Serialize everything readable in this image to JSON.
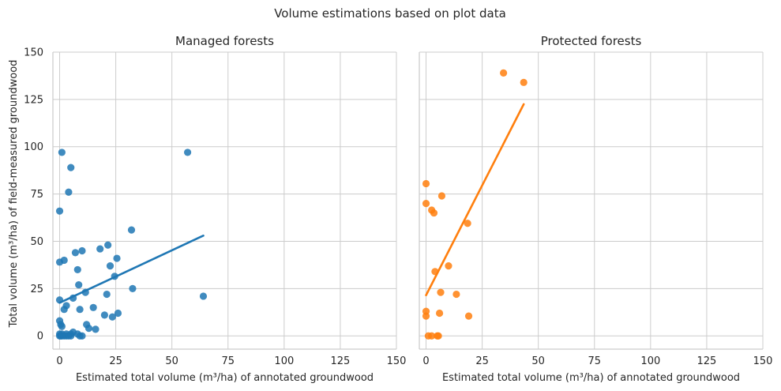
{
  "suptitle": "Volume estimations based on plot data",
  "ylabel": "Total volume (m³/ha) of field-measured groundwood",
  "chart_data": [
    {
      "type": "scatter",
      "title": "Managed forests",
      "xlabel": "Estimated total volume (m³/ha) of annotated groundwood",
      "xlim": [
        -3,
        150
      ],
      "ylim": [
        -7,
        150
      ],
      "xticks": [
        0,
        25,
        50,
        75,
        100,
        125,
        150
      ],
      "yticks": [
        0,
        25,
        50,
        75,
        100,
        125,
        150
      ],
      "grid": true,
      "color": "#1f77b4",
      "points": [
        [
          0,
          0
        ],
        [
          0,
          1
        ],
        [
          0.5,
          0
        ],
        [
          1,
          0
        ],
        [
          1,
          1
        ],
        [
          2,
          0
        ],
        [
          3,
          0
        ],
        [
          3,
          1
        ],
        [
          4,
          0
        ],
        [
          5,
          0
        ],
        [
          5,
          1
        ],
        [
          6,
          2
        ],
        [
          8,
          1
        ],
        [
          9,
          0
        ],
        [
          10,
          0
        ],
        [
          0,
          8
        ],
        [
          0.5,
          6
        ],
        [
          1,
          5
        ],
        [
          2,
          14
        ],
        [
          3,
          16
        ],
        [
          6,
          20
        ],
        [
          0,
          19
        ],
        [
          0,
          39
        ],
        [
          2,
          40
        ],
        [
          0,
          66
        ],
        [
          1,
          97
        ],
        [
          4,
          76
        ],
        [
          5,
          89
        ],
        [
          7,
          44
        ],
        [
          8,
          35
        ],
        [
          8.5,
          27
        ],
        [
          9,
          14
        ],
        [
          10,
          45
        ],
        [
          11.5,
          23
        ],
        [
          12,
          6
        ],
        [
          13,
          4
        ],
        [
          15,
          15
        ],
        [
          16,
          3.5
        ],
        [
          18,
          46
        ],
        [
          20,
          11
        ],
        [
          21,
          22
        ],
        [
          21.5,
          48
        ],
        [
          22.5,
          37
        ],
        [
          23.5,
          10
        ],
        [
          24.5,
          31.5
        ],
        [
          25.5,
          41
        ],
        [
          26,
          12
        ],
        [
          32,
          56
        ],
        [
          32.5,
          25
        ],
        [
          57,
          97
        ],
        [
          64,
          21
        ]
      ],
      "fit": [
        [
          0,
          17.5
        ],
        [
          64,
          53
        ]
      ]
    },
    {
      "type": "scatter",
      "title": "Protected forests",
      "xlabel": "Estimated total volume (m³/ha) of annotated groundwood",
      "xlim": [
        -3,
        150
      ],
      "ylim": [
        -7,
        150
      ],
      "xticks": [
        0,
        25,
        50,
        75,
        100,
        125,
        150
      ],
      "yticks": [
        0,
        25,
        50,
        75,
        100,
        125,
        150
      ],
      "grid": true,
      "color": "#ff7f0e",
      "points": [
        [
          0,
          80.5
        ],
        [
          0,
          70
        ],
        [
          0,
          13
        ],
        [
          0,
          10.5
        ],
        [
          1,
          0
        ],
        [
          2.5,
          0
        ],
        [
          5,
          0
        ],
        [
          5.5,
          0
        ],
        [
          2.5,
          66.5
        ],
        [
          3.5,
          65
        ],
        [
          4,
          34
        ],
        [
          6,
          12
        ],
        [
          6.5,
          23
        ],
        [
          7,
          74
        ],
        [
          10,
          37
        ],
        [
          13.5,
          22
        ],
        [
          18.5,
          59.5
        ],
        [
          19,
          10.5
        ],
        [
          34.5,
          139
        ],
        [
          43.5,
          134
        ]
      ],
      "fit": [
        [
          0,
          21.5
        ],
        [
          43.5,
          122.5
        ]
      ]
    }
  ]
}
